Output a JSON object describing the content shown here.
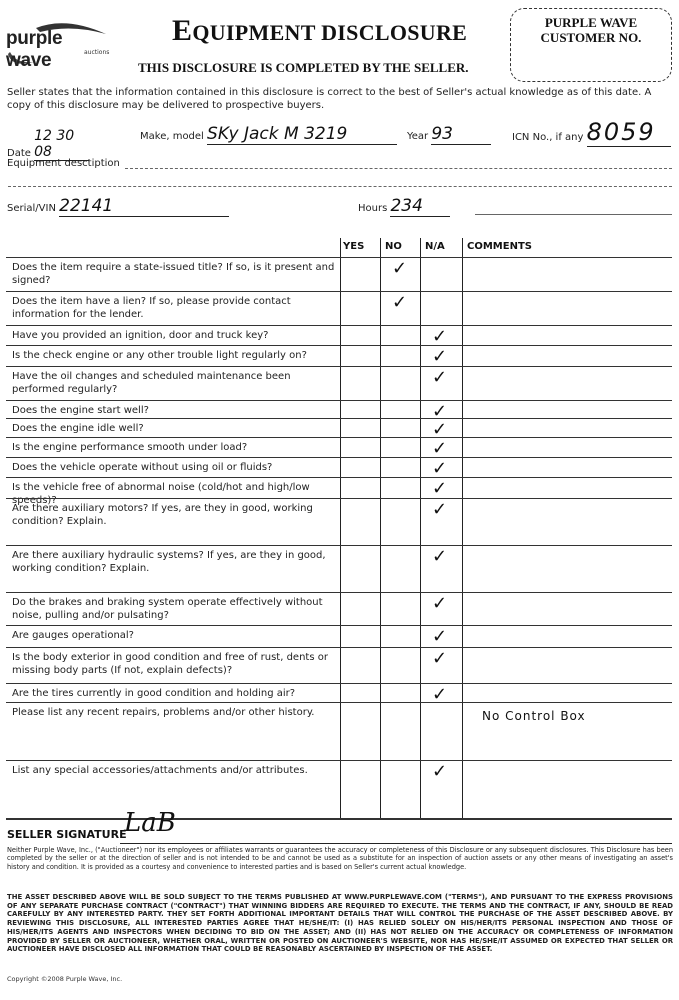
{
  "logo": {
    "name": "purple wave",
    "sub": "auctions"
  },
  "header": {
    "title_first": "E",
    "title_rest": "QUIPMENT DISCLOSURE",
    "subtitle": "THIS DISCLOSURE IS COMPLETED BY THE SELLER.",
    "customer_box_label_1": "PURPLE WAVE",
    "customer_box_label_2": "CUSTOMER NO."
  },
  "intro": "Seller states that the information contained in this disclosure is correct to the best of Seller's actual knowledge as of this date. A copy of this disclosure may be delivered to prospective buyers.",
  "fields": {
    "date_label": "Date",
    "date_value": "12 30 08",
    "make_label": "Make, model",
    "make_value": "SKy Jack M 3219",
    "year_label": "Year",
    "year_value": "93",
    "icn_label": "ICN No., if any",
    "icn_value": "8059",
    "description_label": "Equipment desctiption",
    "serial_label": "Serial/VIN",
    "serial_value": "22141",
    "hours_label": "Hours",
    "hours_value": "234"
  },
  "table": {
    "columns": [
      "YES",
      "NO",
      "N/A",
      "COMMENTS"
    ],
    "rows": [
      {
        "question": "Does the item require a state-issued title? If so, is it present and signed?",
        "answer": "NO",
        "comment": ""
      },
      {
        "question": "Does the item have a lien? If so, please provide contact information for the lender.",
        "answer": "NO",
        "comment": ""
      },
      {
        "question": "Have you provided an ignition, door and truck key?",
        "answer": "N/A",
        "comment": ""
      },
      {
        "question": "Is the check engine or any other trouble light regularly on?",
        "answer": "N/A",
        "comment": ""
      },
      {
        "question": "Have the oil changes and scheduled maintenance been performed regularly?",
        "answer": "N/A",
        "comment": ""
      },
      {
        "question": "Does the engine start well?",
        "answer": "N/A",
        "comment": ""
      },
      {
        "question": "Does the engine idle well?",
        "answer": "N/A",
        "comment": ""
      },
      {
        "question": "Is the engine performance smooth under load?",
        "answer": "N/A",
        "comment": ""
      },
      {
        "question": "Does the vehicle operate without using oil or fluids?",
        "answer": "N/A",
        "comment": ""
      },
      {
        "question": "Is the vehicle free of abnormal noise (cold/hot and high/low speeds)?",
        "answer": "N/A",
        "comment": ""
      },
      {
        "question": "Are there auxiliary motors? If yes, are they in good, working condition? Explain.",
        "answer": "N/A",
        "comment": ""
      },
      {
        "question": "Are there auxiliary hydraulic systems? If yes, are they in good, working condition? Explain.",
        "answer": "N/A",
        "comment": ""
      },
      {
        "question": "Do the brakes and braking system operate effectively without noise, pulling and/or pulsating?",
        "answer": "N/A",
        "comment": ""
      },
      {
        "question": "Are gauges operational?",
        "answer": "N/A",
        "comment": ""
      },
      {
        "question": "Is the body exterior in good condition and free of rust, dents or missing body parts (If not, explain defects)?",
        "answer": "N/A",
        "comment": ""
      },
      {
        "question": "Are the tires currently in good condition and holding air?",
        "answer": "N/A",
        "comment": ""
      },
      {
        "question": "Please list any recent repairs, problems and/or other history.",
        "answer": "",
        "comment": "No Control Box"
      },
      {
        "question": "List any special accessories/attachments and/or attributes.",
        "answer": "N/A",
        "comment": ""
      }
    ]
  },
  "check_mark": "✓",
  "signature": {
    "label": "SELLER SIGNATURE",
    "mark": "LaB"
  },
  "disclaimer": "Neither Purple Wave, Inc., (\"Auctioneer\") nor its employees or affiliates warrants or guarantees the accuracy or completeness of this Disclosure or any subsequent disclosures. This Disclosure has been completed by the seller or at the direction of seller and is not intended to be and cannot be used as a substitute for an inspection of auction assets or any other means of investigating an asset's history and condition. It is provided as a courtesy and convenience to interested parties and is based on Seller's current actual knowledge.",
  "terms": "THE ASSET DESCRIBED ABOVE WILL BE SOLD SUBJECT TO THE TERMS PUBLISHED AT WWW.PURPLEWAVE.COM (\"TERMS\"), AND PURSUANT TO THE EXPRESS PROVISIONS OF ANY SEPARATE PURCHASE CONTRACT (\"CONTRACT\") THAT WINNING BIDDERS ARE REQUIRED TO EXECUTE. THE TERMS AND THE CONTRACT, IF ANY, SHOULD BE READ CAREFULLY BY ANY INTERESTED PARTY. THEY SET FORTH ADDITIONAL IMPORTANT DETAILS THAT WILL CONTROL THE PURCHASE OF THE ASSET DESCRIBED ABOVE. BY REVIEWING THIS DISCLOSURE, ALL INTERESTED PARTIES AGREE THAT HE/SHE/IT: (I) HAS RELIED SOLELY ON HIS/HER/ITS PERSONAL INSPECTION AND THOSE OF HIS/HER/ITS AGENTS AND INSPECTORS WHEN DECIDING TO BID ON THE ASSET; AND (II) HAS NOT RELIED ON THE ACCURACY OR COMPLETENESS OF INFORMATION PROVIDED BY SELLER OR AUCTIONEER, WHETHER ORAL, WRITTEN OR POSTED ON AUCTIONEER'S WEBSITE, NOR HAS HE/SHE/IT ASSUMED OR EXPECTED THAT SELLER OR AUCTIONEER HAVE DISCLOSED ALL INFORMATION THAT COULD BE REASONABLY ASCERTAINED BY INSPECTION OF THE ASSET.",
  "copyright": "Copyright ©2008 Purple Wave, Inc."
}
